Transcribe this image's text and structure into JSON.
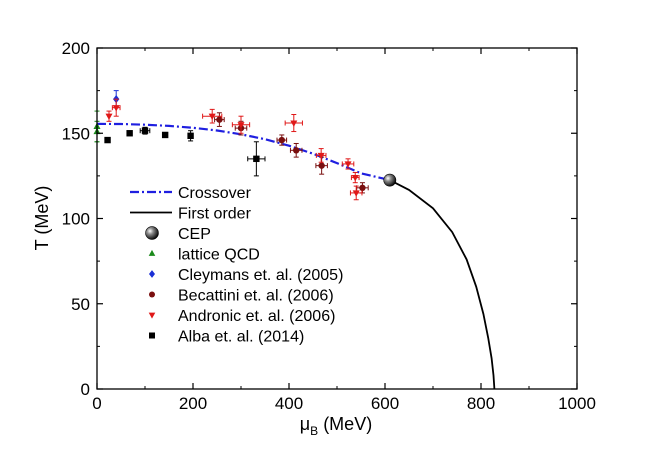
{
  "chart_data": {
    "type": "scatter",
    "title": "",
    "xlabel": "μ",
    "xlabel_subscript": "B",
    "xlabel_unit": " (MeV)",
    "ylabel": "T (MeV)",
    "xlim": [
      0,
      1000
    ],
    "ylim": [
      0,
      200
    ],
    "x_ticks": [
      0,
      200,
      400,
      600,
      800,
      1000
    ],
    "y_ticks": [
      0,
      50,
      100,
      150,
      200
    ],
    "grid": false,
    "legend_position": "lower-left",
    "curves": [
      {
        "name": "Crossover",
        "style": "dash-dot",
        "color": "#1f1fe0",
        "points": [
          [
            0,
            155.5
          ],
          [
            50,
            155.4
          ],
          [
            100,
            155.0
          ],
          [
            150,
            154.3
          ],
          [
            200,
            153.2
          ],
          [
            250,
            151.6
          ],
          [
            300,
            149.4
          ],
          [
            350,
            146.5
          ],
          [
            400,
            142.7
          ],
          [
            450,
            138.0
          ],
          [
            500,
            132.5
          ],
          [
            550,
            126.5
          ],
          [
            610,
            122.5
          ]
        ]
      },
      {
        "name": "First order",
        "style": "solid",
        "color": "#000000",
        "points": [
          [
            610,
            122.5
          ],
          [
            650,
            116.8
          ],
          [
            700,
            106.0
          ],
          [
            740,
            92.0
          ],
          [
            770,
            76.0
          ],
          [
            790,
            60.0
          ],
          [
            805,
            44.0
          ],
          [
            815,
            30.0
          ],
          [
            822,
            18.0
          ],
          [
            826,
            8.0
          ],
          [
            828,
            0.0
          ]
        ]
      }
    ],
    "series": [
      {
        "name": "CEP",
        "marker": "sphere",
        "color": "#222222",
        "points": [
          {
            "x": 610,
            "y": 122.5
          }
        ]
      },
      {
        "name": "lattice QCD",
        "marker": "triangle-up",
        "color": "#1a8a1a",
        "points": [
          {
            "x": 0,
            "y": 154,
            "yerr": 9
          },
          {
            "x": 0,
            "y": 151,
            "yerr": 6
          }
        ]
      },
      {
        "name": "Cleymans et. al. (2005)",
        "marker": "diamond",
        "color": "#1a2fd6",
        "points": [
          {
            "x": 40,
            "y": 170,
            "yerr": 5
          }
        ]
      },
      {
        "name": "Becattini et. al. (2006)",
        "marker": "circle",
        "color": "#7a0f0f",
        "points": [
          {
            "x": 255,
            "y": 158,
            "xerr": 10,
            "yerr": 4
          },
          {
            "x": 300,
            "y": 153,
            "xerr": 12,
            "yerr": 4
          },
          {
            "x": 385,
            "y": 146,
            "xerr": 10,
            "yerr": 3
          },
          {
            "x": 415,
            "y": 140,
            "xerr": 12,
            "yerr": 4
          },
          {
            "x": 468,
            "y": 131,
            "xerr": 12,
            "yerr": 5
          },
          {
            "x": 553,
            "y": 118,
            "xerr": 12,
            "yerr": 3
          }
        ]
      },
      {
        "name": "Andronic et. al. (2006)",
        "marker": "triangle-down",
        "color": "#e01818",
        "points": [
          {
            "x": 25,
            "y": 160,
            "yerr": 3
          },
          {
            "x": 40,
            "y": 165,
            "xerr": 8,
            "yerr": 5
          },
          {
            "x": 240,
            "y": 160,
            "xerr": 20,
            "yerr": 4
          },
          {
            "x": 300,
            "y": 155,
            "xerr": 18,
            "yerr": 5
          },
          {
            "x": 410,
            "y": 156,
            "xerr": 18,
            "yerr": 5
          },
          {
            "x": 467,
            "y": 137,
            "xerr": 10,
            "yerr": 4
          },
          {
            "x": 523,
            "y": 132,
            "xerr": 12,
            "yerr": 3
          },
          {
            "x": 538,
            "y": 124,
            "xerr": 8,
            "yerr": 3
          },
          {
            "x": 540,
            "y": 115,
            "xerr": 12,
            "yerr": 4
          }
        ]
      },
      {
        "name": "Alba et. al. (2014)",
        "marker": "square",
        "color": "#000000",
        "points": [
          {
            "x": 22,
            "y": 146
          },
          {
            "x": 68,
            "y": 150
          },
          {
            "x": 100,
            "y": 151.5,
            "xerr": 10,
            "yerr": 2
          },
          {
            "x": 142,
            "y": 149
          },
          {
            "x": 195,
            "y": 148.5,
            "yerr": 3
          },
          {
            "x": 332,
            "y": 135,
            "xerr": 18,
            "yerr": 10
          }
        ]
      }
    ]
  }
}
